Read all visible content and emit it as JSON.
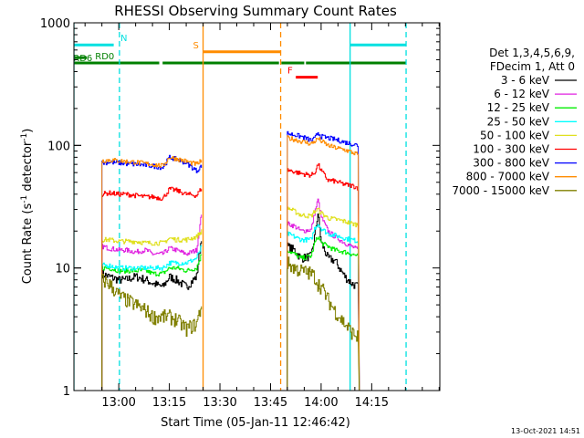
{
  "chart_data": {
    "type": "line",
    "title": "RHESSI Observing Summary Count Rates",
    "xlabel": "Start Time (05-Jan-11 12:46:42)",
    "ylabel_main": "Count Rate (s",
    "ylabel_sup1": "-1",
    "ylabel_mid": " detector",
    "ylabel_sup2": "-1",
    "ylabel_end": ")",
    "yscale": "log",
    "ylim": [
      1,
      1000
    ],
    "xlim": [
      46.7,
      155.2
    ],
    "x_unit": "minutes after 12:00 UT",
    "xticks": [
      {
        "v": 60,
        "label": "13:00"
      },
      {
        "v": 75,
        "label": "13:15"
      },
      {
        "v": 90,
        "label": "13:30"
      },
      {
        "v": 105,
        "label": "13:45"
      },
      {
        "v": 120,
        "label": "14:00"
      },
      {
        "v": 135,
        "label": "14:15"
      }
    ],
    "yticks": [
      {
        "v": 1,
        "label": "1"
      },
      {
        "v": 10,
        "label": "10"
      },
      {
        "v": 100,
        "label": "100"
      },
      {
        "v": 1000,
        "label": "1000"
      }
    ],
    "legend_title_1": "Det 1,3,4,5,6,9,",
    "legend_title_2": "FDecim 1, Att 0",
    "legend_placement": "right",
    "series": [
      {
        "name": "3 - 6 keV",
        "color": "#000000",
        "seg1": [
          [
            55,
            9
          ],
          [
            57,
            8.5
          ],
          [
            60,
            8
          ],
          [
            62,
            8
          ],
          [
            65,
            8.5
          ],
          [
            68,
            8
          ],
          [
            70,
            7.5
          ],
          [
            73,
            7
          ],
          [
            75,
            8.5
          ],
          [
            77,
            8
          ],
          [
            80,
            7
          ],
          [
            83,
            8.5
          ],
          [
            84.5,
            18
          ]
        ],
        "seg2": [
          [
            110,
            15
          ],
          [
            112,
            14
          ],
          [
            114,
            12
          ],
          [
            117,
            12.5
          ],
          [
            118,
            18
          ],
          [
            119,
            28
          ],
          [
            120,
            16
          ],
          [
            122,
            12
          ],
          [
            124,
            11.5
          ],
          [
            127,
            8.5
          ],
          [
            129,
            7.5
          ],
          [
            131,
            7
          ]
        ]
      },
      {
        "name": "6 - 12 keV",
        "color": "#e020e0",
        "seg1": [
          [
            55,
            15
          ],
          [
            57,
            14.5
          ],
          [
            60,
            14
          ],
          [
            62,
            14
          ],
          [
            65,
            13.5
          ],
          [
            68,
            14
          ],
          [
            70,
            13
          ],
          [
            73,
            13
          ],
          [
            75,
            14.5
          ],
          [
            77,
            14
          ],
          [
            80,
            13
          ],
          [
            83,
            14
          ],
          [
            84.5,
            28
          ]
        ],
        "seg2": [
          [
            110,
            23
          ],
          [
            112,
            22
          ],
          [
            114,
            20
          ],
          [
            117,
            20.5
          ],
          [
            118,
            28
          ],
          [
            119,
            36
          ],
          [
            120,
            26
          ],
          [
            122,
            20
          ],
          [
            124,
            18
          ],
          [
            127,
            16
          ],
          [
            129,
            15
          ],
          [
            131,
            14
          ]
        ]
      },
      {
        "name": "12 - 25 keV",
        "color": "#00ee00",
        "seg1": [
          [
            55,
            10
          ],
          [
            57,
            10
          ],
          [
            60,
            9.5
          ],
          [
            62,
            9.5
          ],
          [
            65,
            9.5
          ],
          [
            68,
            9.5
          ],
          [
            70,
            9
          ],
          [
            73,
            9
          ],
          [
            75,
            10
          ],
          [
            77,
            10
          ],
          [
            80,
            9.5
          ],
          [
            83,
            10
          ],
          [
            84.5,
            13
          ]
        ],
        "seg2": [
          [
            110,
            14
          ],
          [
            112,
            13
          ],
          [
            114,
            12
          ],
          [
            117,
            12.5
          ],
          [
            118,
            16
          ],
          [
            119,
            18
          ],
          [
            120,
            16
          ],
          [
            122,
            15
          ],
          [
            124,
            14
          ],
          [
            127,
            13.5
          ],
          [
            129,
            13
          ],
          [
            131,
            12.5
          ]
        ]
      },
      {
        "name": "25 - 50 keV",
        "color": "#00ffff",
        "seg1": [
          [
            55,
            10.5
          ],
          [
            57,
            10.5
          ],
          [
            60,
            10
          ],
          [
            62,
            10
          ],
          [
            65,
            10
          ],
          [
            68,
            10
          ],
          [
            70,
            10
          ],
          [
            73,
            10
          ],
          [
            75,
            11
          ],
          [
            77,
            11
          ],
          [
            80,
            11
          ],
          [
            83,
            12
          ],
          [
            84.5,
            15
          ]
        ],
        "seg2": [
          [
            110,
            19
          ],
          [
            112,
            18
          ],
          [
            114,
            17
          ],
          [
            117,
            17
          ],
          [
            118,
            21
          ],
          [
            119,
            23
          ],
          [
            120,
            21
          ],
          [
            122,
            19
          ],
          [
            124,
            18.5
          ],
          [
            127,
            17.5
          ],
          [
            129,
            17
          ],
          [
            131,
            16.5
          ]
        ]
      },
      {
        "name": "50 - 100 keV",
        "color": "#e0e020",
        "seg1": [
          [
            55,
            17
          ],
          [
            57,
            17
          ],
          [
            60,
            16.5
          ],
          [
            62,
            16.5
          ],
          [
            65,
            16.5
          ],
          [
            68,
            16
          ],
          [
            70,
            16
          ],
          [
            73,
            16
          ],
          [
            75,
            17.5
          ],
          [
            77,
            17
          ],
          [
            80,
            17
          ],
          [
            83,
            18
          ],
          [
            84.5,
            20
          ]
        ],
        "seg2": [
          [
            110,
            31
          ],
          [
            112,
            29
          ],
          [
            114,
            27
          ],
          [
            117,
            26.5
          ],
          [
            118,
            29
          ],
          [
            119,
            30
          ],
          [
            120,
            28
          ],
          [
            122,
            25.5
          ],
          [
            124,
            25
          ],
          [
            127,
            24
          ],
          [
            129,
            23
          ],
          [
            131,
            22.5
          ]
        ]
      },
      {
        "name": "100 - 300 keV",
        "color": "#ff0000",
        "seg1": [
          [
            55,
            40
          ],
          [
            57,
            41
          ],
          [
            60,
            40
          ],
          [
            62,
            40
          ],
          [
            65,
            39
          ],
          [
            68,
            38
          ],
          [
            70,
            38
          ],
          [
            73,
            37
          ],
          [
            75,
            44
          ],
          [
            77,
            43
          ],
          [
            80,
            40
          ],
          [
            83,
            39
          ],
          [
            84.5,
            45
          ]
        ],
        "seg2": [
          [
            110,
            63
          ],
          [
            112,
            61
          ],
          [
            114,
            59
          ],
          [
            117,
            57
          ],
          [
            118,
            60
          ],
          [
            119,
            70
          ],
          [
            120,
            62
          ],
          [
            122,
            52
          ],
          [
            124,
            51
          ],
          [
            127,
            48
          ],
          [
            129,
            47
          ],
          [
            131,
            45
          ]
        ]
      },
      {
        "name": "300 - 800 keV",
        "color": "#0000ff",
        "seg1": [
          [
            55,
            72
          ],
          [
            57,
            73
          ],
          [
            60,
            72
          ],
          [
            62,
            71
          ],
          [
            65,
            70
          ],
          [
            68,
            69
          ],
          [
            70,
            68
          ],
          [
            73,
            66
          ],
          [
            75,
            80
          ],
          [
            77,
            77
          ],
          [
            80,
            72
          ],
          [
            83,
            62
          ],
          [
            84.5,
            68
          ]
        ],
        "seg2": [
          [
            110,
            125
          ],
          [
            112,
            122
          ],
          [
            114,
            118
          ],
          [
            117,
            110
          ],
          [
            118,
            113
          ],
          [
            119,
            128
          ],
          [
            120,
            118
          ],
          [
            122,
            115
          ],
          [
            124,
            112
          ],
          [
            127,
            106
          ],
          [
            129,
            103
          ],
          [
            131,
            100
          ]
        ]
      },
      {
        "name": "800 - 7000 keV",
        "color": "#ff8c00",
        "seg1": [
          [
            55,
            75
          ],
          [
            57,
            76
          ],
          [
            60,
            75
          ],
          [
            62,
            74
          ],
          [
            65,
            73
          ],
          [
            68,
            71
          ],
          [
            70,
            70
          ],
          [
            73,
            68
          ],
          [
            75,
            80
          ],
          [
            77,
            78
          ],
          [
            80,
            74
          ],
          [
            83,
            70
          ],
          [
            84.5,
            75
          ]
        ],
        "seg2": [
          [
            110,
            115
          ],
          [
            112,
            112
          ],
          [
            114,
            108
          ],
          [
            117,
            103
          ],
          [
            118,
            108
          ],
          [
            119,
            114
          ],
          [
            120,
            108
          ],
          [
            122,
            100
          ],
          [
            124,
            96
          ],
          [
            127,
            92
          ],
          [
            129,
            88
          ],
          [
            131,
            84
          ]
        ]
      },
      {
        "name": "7000 - 15000 keV",
        "color": "#808000",
        "seg1": [
          [
            55,
            8
          ],
          [
            57,
            7.5
          ],
          [
            60,
            6
          ],
          [
            62,
            5.5
          ],
          [
            65,
            5
          ],
          [
            68,
            4.5
          ],
          [
            70,
            4
          ],
          [
            73,
            4
          ],
          [
            75,
            4
          ],
          [
            77,
            3.8
          ],
          [
            80,
            3.2
          ],
          [
            83,
            3.5
          ],
          [
            84.5,
            5
          ]
        ],
        "seg2": [
          [
            110,
            11
          ],
          [
            112,
            10
          ],
          [
            114,
            9.5
          ],
          [
            117,
            9
          ],
          [
            118,
            8.5
          ],
          [
            119,
            7.5
          ],
          [
            120,
            7
          ],
          [
            122,
            5.5
          ],
          [
            124,
            4.5
          ],
          [
            127,
            3.5
          ],
          [
            129,
            3
          ],
          [
            131,
            2.7
          ]
        ]
      }
    ],
    "flags": [
      {
        "name": "N",
        "label": "N",
        "color": "#00e0e0",
        "y": 660,
        "segments": [
          [
            46.7,
            58.5
          ],
          [
            128.6,
            145.2
          ]
        ],
        "label_x": 60.5
      },
      {
        "name": "S",
        "label": "S",
        "color": "#ff8c00",
        "y": 580,
        "segments": [
          [
            85,
            108
          ]
        ],
        "label_x": 82
      },
      {
        "name": "F",
        "label": "F",
        "color": "#ff0000",
        "y": 360,
        "segments": [
          [
            112.5,
            119
          ]
        ],
        "label_x": 110
      },
      {
        "name": "RD0",
        "label": "RD0",
        "color": "#008000",
        "y": 470,
        "segments": [
          [
            46.7,
            72
          ],
          [
            73,
            107.5
          ],
          [
            108.2,
            115
          ],
          [
            115.5,
            145.2
          ]
        ],
        "label_x": 53
      },
      {
        "name": "RD6",
        "label": "RD6",
        "color": "#008000",
        "y": 520,
        "segments": [
          [
            46.7,
            50.5
          ]
        ],
        "label_x": 46.5
      }
    ],
    "vlines": [
      {
        "x": 46.7,
        "color": "#00e0e0",
        "style": "solid"
      },
      {
        "x": 60.2,
        "color": "#00e0e0",
        "style": "dashed"
      },
      {
        "x": 85,
        "color": "#ff8c00",
        "style": "solid"
      },
      {
        "x": 108,
        "color": "#ff8c00",
        "style": "dashed"
      },
      {
        "x": 128.6,
        "color": "#00e0e0",
        "style": "solid"
      },
      {
        "x": 145.2,
        "color": "#00e0e0",
        "style": "dashed"
      }
    ]
  },
  "footer": {
    "date": "13-Oct-2021 14:51"
  }
}
